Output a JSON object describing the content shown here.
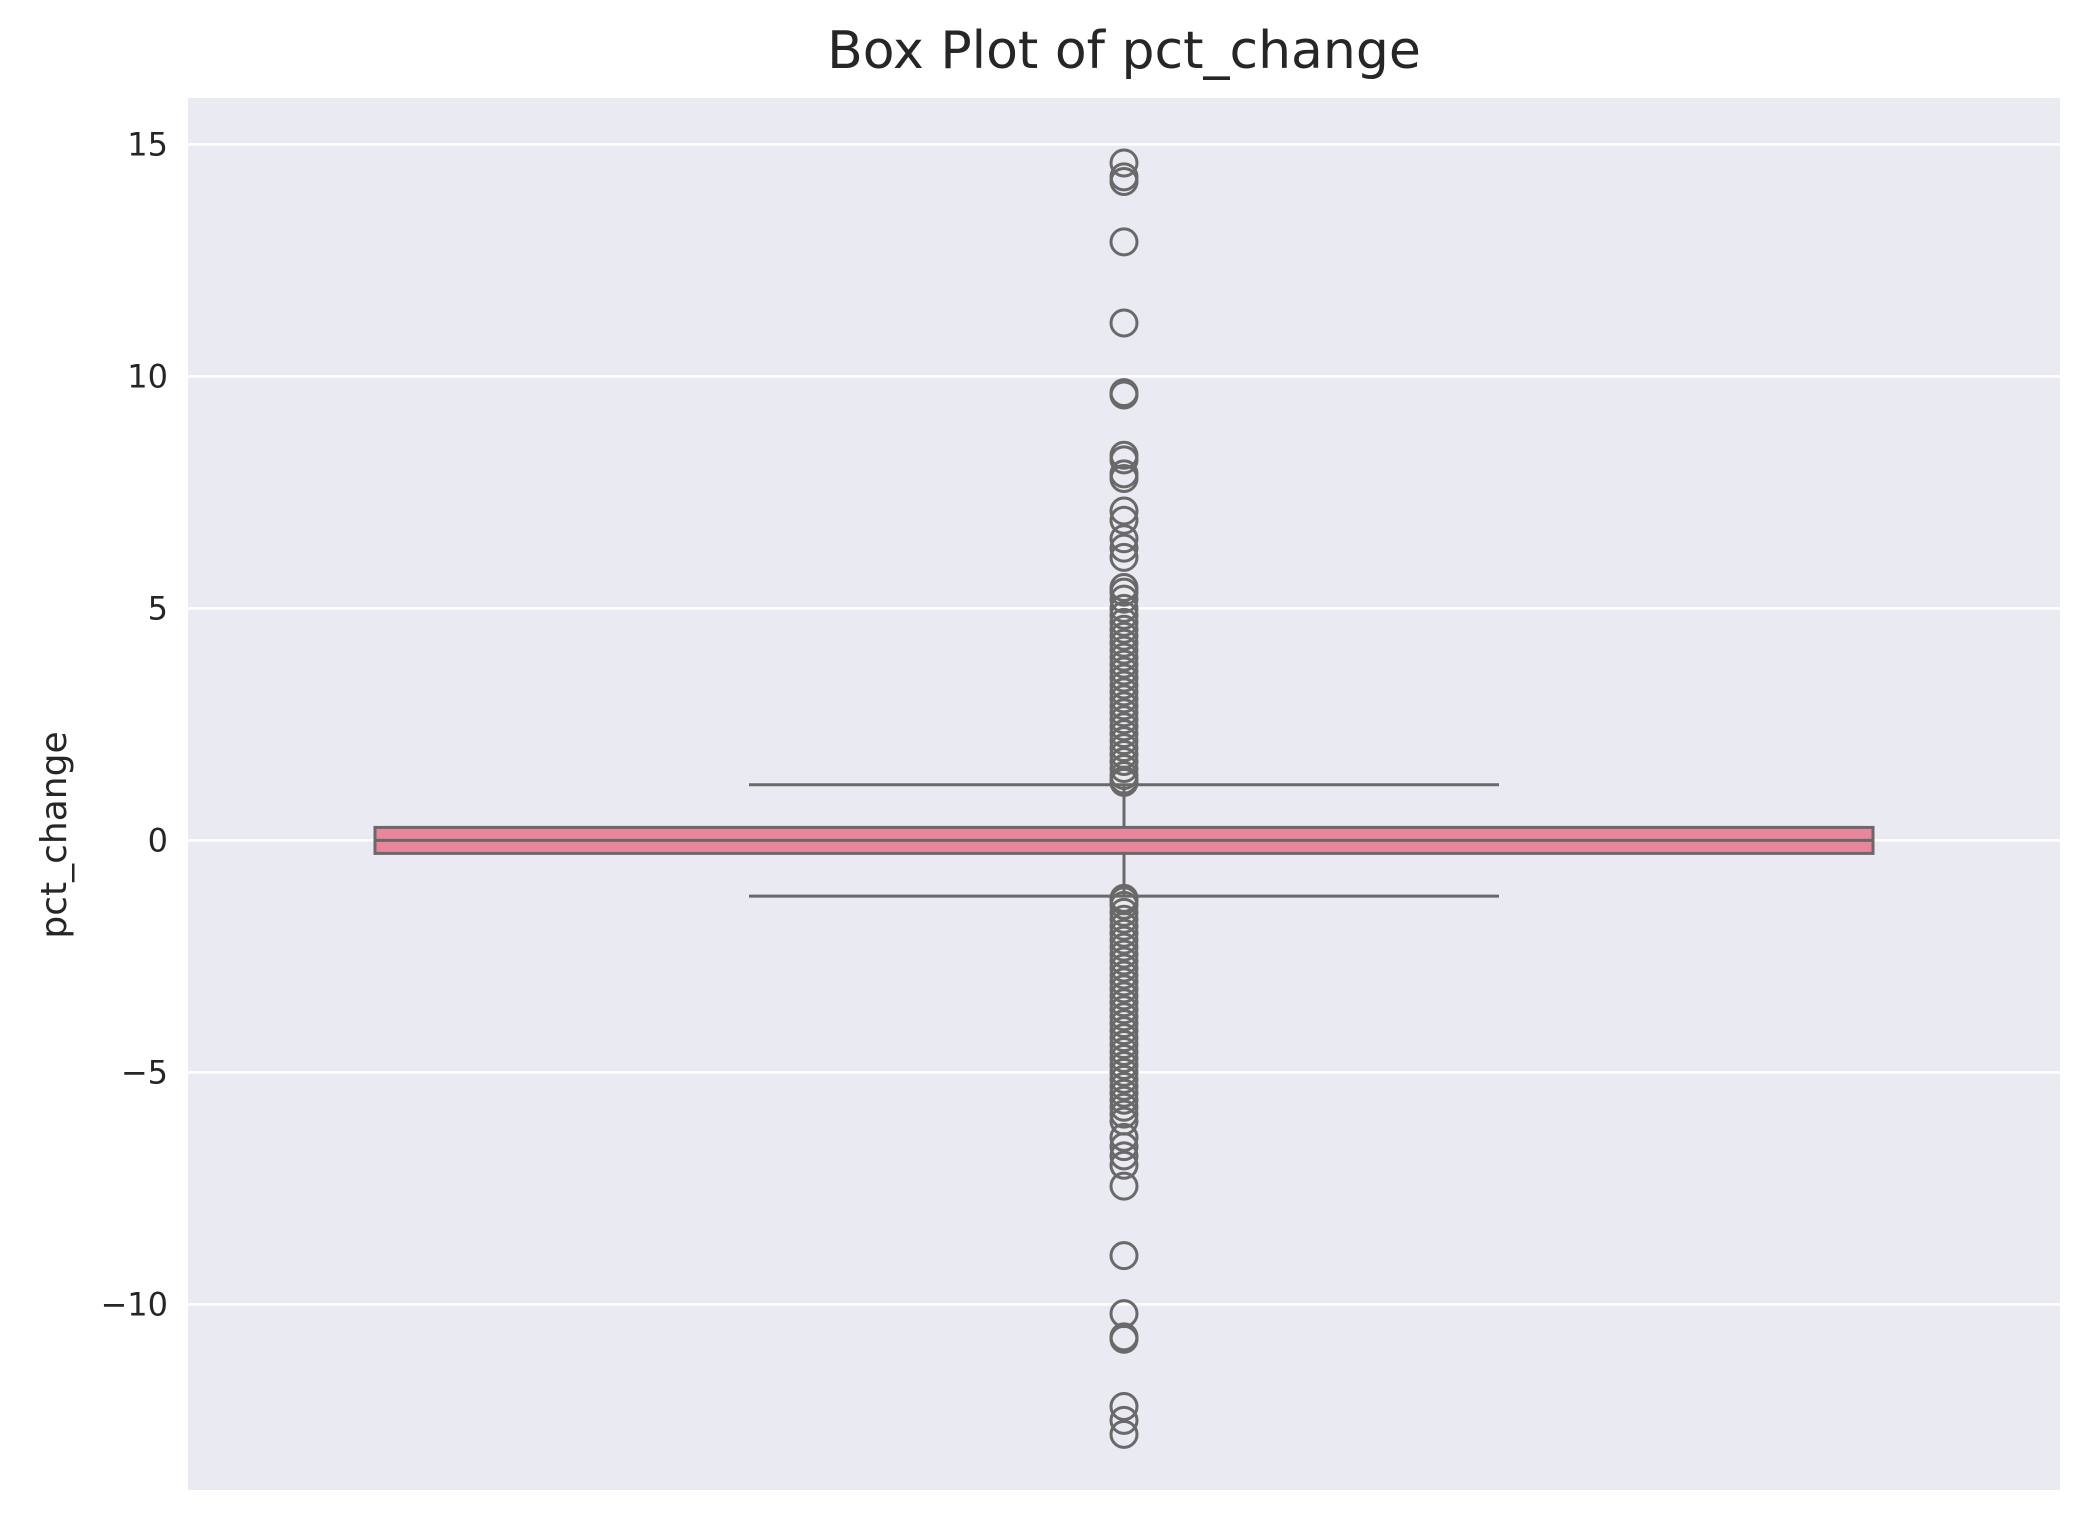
{
  "chart_data": {
    "type": "box",
    "title": "Box Plot of pct_change",
    "xlabel": "",
    "ylabel": "pct_change",
    "ylim": [
      -14,
      16
    ],
    "yticks": [
      15,
      10,
      5,
      0,
      -5,
      -10
    ],
    "ytick_labels": [
      "15",
      "10",
      "5",
      "0",
      "−5",
      "−10"
    ],
    "grid": true,
    "box": {
      "q1": -0.28,
      "median": 0.0,
      "q3": 0.28,
      "whisker_low": -1.2,
      "whisker_high": 1.2
    },
    "outliers": [
      14.6,
      14.3,
      14.2,
      12.9,
      11.15,
      9.65,
      9.6,
      8.3,
      8.2,
      7.9,
      7.8,
      7.1,
      6.9,
      6.5,
      6.3,
      6.1,
      5.45,
      5.35,
      5.2,
      5.0,
      4.85,
      4.7,
      4.55,
      4.4,
      4.25,
      4.1,
      3.95,
      3.8,
      3.65,
      3.5,
      3.35,
      3.2,
      3.05,
      2.9,
      2.75,
      2.6,
      2.45,
      2.3,
      2.15,
      2.0,
      1.85,
      1.7,
      1.55,
      1.4,
      1.3,
      1.25,
      -1.25,
      -1.3,
      -1.4,
      -1.55,
      -1.7,
      -1.85,
      -2.0,
      -2.15,
      -2.3,
      -2.45,
      -2.6,
      -2.75,
      -2.9,
      -3.05,
      -3.2,
      -3.35,
      -3.5,
      -3.65,
      -3.8,
      -3.95,
      -4.1,
      -4.25,
      -4.4,
      -4.55,
      -4.7,
      -4.85,
      -5.0,
      -5.15,
      -5.3,
      -5.45,
      -5.6,
      -5.75,
      -5.9,
      -6.05,
      -6.4,
      -6.6,
      -6.8,
      -7.0,
      -7.45,
      -8.95,
      -10.2,
      -10.7,
      -10.75,
      -12.2,
      -12.5,
      -12.8
    ],
    "colors": {
      "background": "#eaeaf2",
      "grid": "#ffffff",
      "box_fill": "#e9869b",
      "lines": "#696969"
    }
  }
}
